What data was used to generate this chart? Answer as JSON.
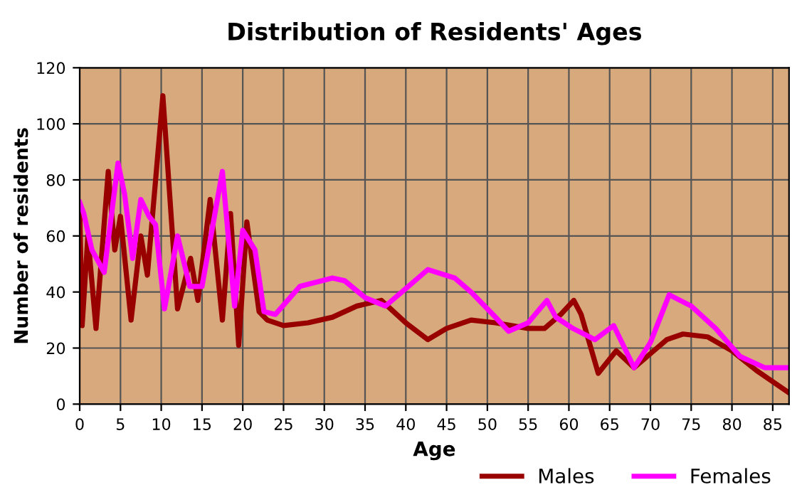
{
  "chart_data": {
    "type": "line",
    "title": "Distribution of Residents' Ages",
    "xlabel": "Age",
    "ylabel": "Number of residents",
    "xlim": [
      0,
      87
    ],
    "xticks": [
      0,
      5,
      10,
      15,
      20,
      25,
      30,
      35,
      40,
      45,
      50,
      55,
      60,
      65,
      70,
      75,
      80,
      85
    ],
    "ylim": [
      0,
      120
    ],
    "yticks": [
      0,
      20,
      40,
      60,
      80,
      100,
      120
    ],
    "grid": true,
    "legend": "bottom right",
    "marker": "none",
    "line_style": "solid",
    "series": [
      {
        "name": "Males",
        "color": "#990000",
        "x": [
          0,
          0.3,
          1,
          2,
          3.5,
          4.3,
          5,
          6.3,
          7.5,
          8.3,
          10.2,
          12,
          13.6,
          14.5,
          16,
          17.5,
          18.5,
          19.5,
          20.5,
          22,
          23,
          25,
          28,
          31,
          34,
          37,
          40,
          42.7,
          45,
          48,
          51,
          55,
          57,
          59,
          60.6,
          61.5,
          63.6,
          65.8,
          68,
          70,
          72,
          74,
          77,
          80,
          83,
          87
        ],
        "values": [
          70,
          28,
          60,
          27,
          83,
          55,
          67,
          30,
          60,
          46,
          110,
          34,
          52,
          37,
          73,
          30,
          68,
          21,
          65,
          33,
          30,
          28,
          29,
          31,
          35,
          37,
          29,
          23,
          27,
          30,
          29,
          27,
          27,
          32,
          37,
          32,
          11,
          19,
          13,
          18,
          23,
          25,
          24,
          19,
          12,
          4
        ]
      },
      {
        "name": "Females",
        "color": "#ff00ff",
        "x": [
          0,
          0.5,
          1.5,
          3,
          4.7,
          5.5,
          6.5,
          7.5,
          8.5,
          9.3,
          10.4,
          12,
          13.5,
          15,
          17.5,
          19,
          20,
          21.5,
          22.6,
          24,
          27,
          31,
          32.5,
          35,
          37.5,
          39.5,
          42.7,
          46,
          48,
          51,
          52.6,
          55,
          57.3,
          58.4,
          60.5,
          63.2,
          65.5,
          68,
          70,
          72.3,
          75,
          78,
          81,
          84,
          87
        ],
        "values": [
          72,
          68,
          55,
          47,
          86,
          75,
          52,
          73,
          67,
          64,
          34,
          60,
          42,
          42,
          83,
          35,
          62,
          55,
          33,
          32,
          42,
          45,
          44,
          38,
          35,
          40,
          48,
          45,
          40,
          31,
          26,
          29,
          37,
          31,
          27,
          23,
          28,
          13,
          22,
          39,
          35,
          27,
          17,
          13,
          13
        ]
      }
    ]
  }
}
